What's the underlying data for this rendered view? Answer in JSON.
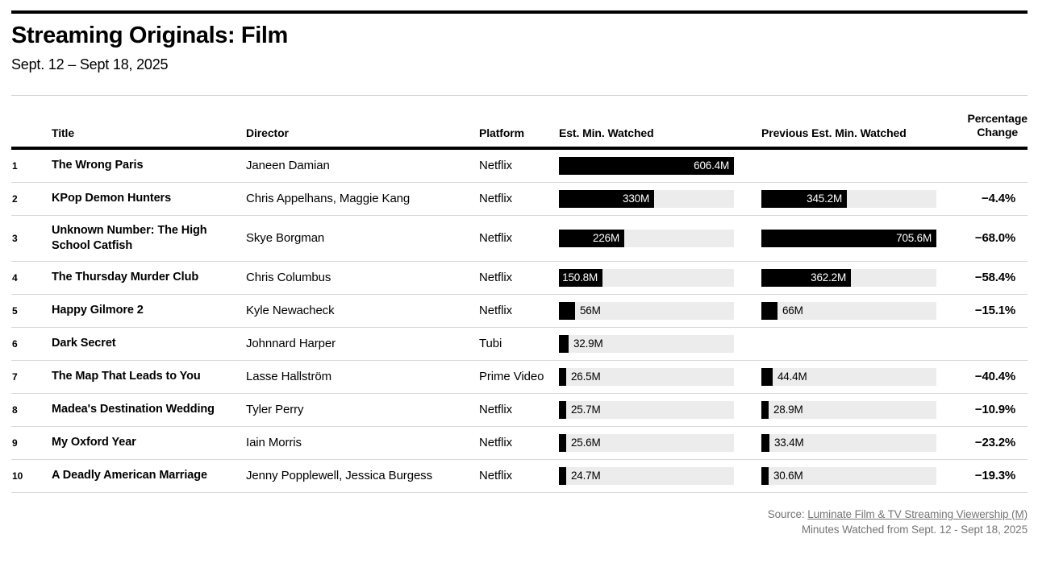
{
  "header": {
    "title": "Streaming Originals: Film",
    "subtitle": "Sept. 12 – Sept 18, 2025"
  },
  "table_headers": {
    "title": "Title",
    "director": "Director",
    "platform": "Platform",
    "est": "Est. Min. Watched",
    "prev": "Previous Est. Min. Watched",
    "pct_line1": "Percentage",
    "pct_line2": "Change"
  },
  "footer": {
    "source_prefix": "Source: ",
    "source_link": "Luminate Film & TV Streaming Viewership (M)",
    "note": "Minutes Watched from Sept. 12 - Sept 18, 2025"
  },
  "colors": {
    "bar_fill": "#000000",
    "bar_track": "#ececec",
    "row_divider": "#d9d9d9",
    "footer_text": "#757575"
  },
  "chart_data": {
    "type": "table",
    "title": "Streaming Originals: Film",
    "subtitle": "Sept. 12 – Sept 18, 2025",
    "columns": [
      "Rank",
      "Title",
      "Director",
      "Platform",
      "Est. Min. Watched",
      "Previous Est. Min. Watched",
      "Percentage Change"
    ],
    "units": "minutes watched, millions",
    "est_max": 606.4,
    "prev_max": 705.6,
    "rows": [
      {
        "rank": "1",
        "title": "The Wrong Paris",
        "director": "Janeen Damian",
        "platform": "Netflix",
        "est": 606.4,
        "est_label": "606.4M",
        "est_inside": true,
        "prev": null,
        "prev_label": "",
        "prev_inside": false,
        "pct": ""
      },
      {
        "rank": "2",
        "title": "KPop Demon Hunters",
        "director": "Chris Appelhans, Maggie Kang",
        "platform": "Netflix",
        "est": 330,
        "est_label": "330M",
        "est_inside": true,
        "prev": 345.2,
        "prev_label": "345.2M",
        "prev_inside": true,
        "pct": "−4.4%"
      },
      {
        "rank": "3",
        "title": "Unknown Number: The High School Catfish",
        "director": "Skye Borgman",
        "platform": "Netflix",
        "est": 226,
        "est_label": "226M",
        "est_inside": true,
        "prev": 705.6,
        "prev_label": "705.6M",
        "prev_inside": true,
        "pct": "−68.0%"
      },
      {
        "rank": "4",
        "title": "The Thursday Murder Club",
        "director": "Chris Columbus",
        "platform": "Netflix",
        "est": 150.8,
        "est_label": "150.8M",
        "est_inside": true,
        "prev": 362.2,
        "prev_label": "362.2M",
        "prev_inside": true,
        "pct": "−58.4%"
      },
      {
        "rank": "5",
        "title": "Happy Gilmore 2",
        "director": "Kyle Newacheck",
        "platform": "Netflix",
        "est": 56,
        "est_label": "56M",
        "est_inside": false,
        "prev": 66,
        "prev_label": "66M",
        "prev_inside": false,
        "pct": "−15.1%"
      },
      {
        "rank": "6",
        "title": "Dark Secret",
        "director": "Johnnard Harper",
        "platform": "Tubi",
        "est": 32.9,
        "est_label": "32.9M",
        "est_inside": false,
        "prev": null,
        "prev_label": "",
        "prev_inside": false,
        "pct": ""
      },
      {
        "rank": "7",
        "title": "The Map That Leads to You",
        "director": "Lasse Hallström",
        "platform": "Prime Video",
        "est": 26.5,
        "est_label": "26.5M",
        "est_inside": false,
        "prev": 44.4,
        "prev_label": "44.4M",
        "prev_inside": false,
        "pct": "−40.4%"
      },
      {
        "rank": "8",
        "title": "Madea's Destination Wedding",
        "director": "Tyler Perry",
        "platform": "Netflix",
        "est": 25.7,
        "est_label": "25.7M",
        "est_inside": false,
        "prev": 28.9,
        "prev_label": "28.9M",
        "prev_inside": false,
        "pct": "−10.9%"
      },
      {
        "rank": "9",
        "title": "My Oxford Year",
        "director": "Iain Morris",
        "platform": "Netflix",
        "est": 25.6,
        "est_label": "25.6M",
        "est_inside": false,
        "prev": 33.4,
        "prev_label": "33.4M",
        "prev_inside": false,
        "pct": "−23.2%"
      },
      {
        "rank": "10",
        "title": "A Deadly American Marriage",
        "director": "Jenny Popplewell, Jessica Burgess",
        "platform": "Netflix",
        "est": 24.7,
        "est_label": "24.7M",
        "est_inside": false,
        "prev": 30.6,
        "prev_label": "30.6M",
        "prev_inside": false,
        "pct": "−19.3%"
      }
    ]
  }
}
